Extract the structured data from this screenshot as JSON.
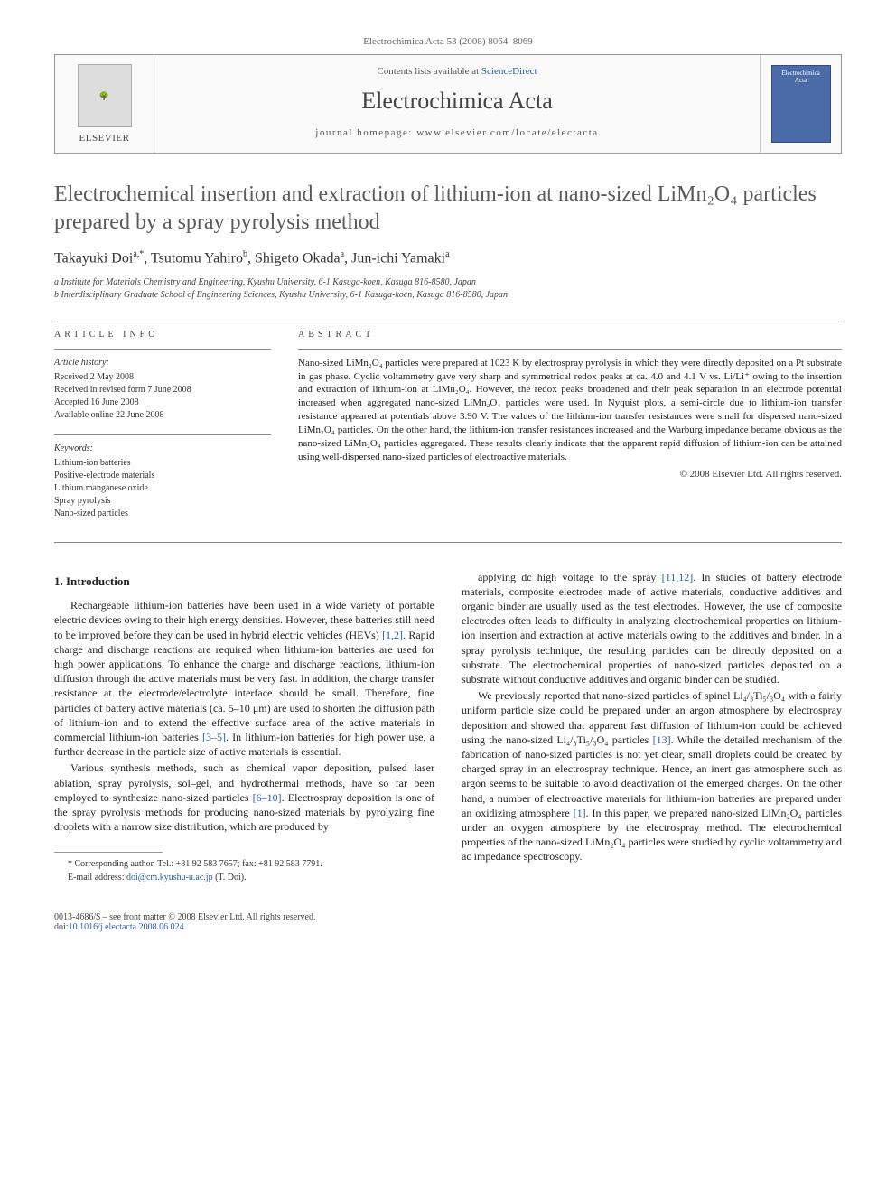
{
  "citation": "Electrochimica Acta 53 (2008) 8064–8069",
  "header": {
    "publisher_name": "ELSEVIER",
    "contents_prefix": "Contents lists available at ",
    "contents_link": "ScienceDirect",
    "journal_name": "Electrochimica Acta",
    "homepage_prefix": "journal homepage: ",
    "homepage_url": "www.elsevier.com/locate/electacta",
    "cover_label": "Electrochimica Acta"
  },
  "article": {
    "title": "Electrochemical insertion and extraction of lithium-ion at nano-sized LiMn₂O₄ particles prepared by a spray pyrolysis method",
    "authors_html": "Takayuki Doi<sup>a,*</sup>, Tsutomu Yahiro<sup>b</sup>, Shigeto Okada<sup>a</sup>, Jun-ichi Yamaki<sup>a</sup>",
    "affiliations": [
      "a Institute for Materials Chemistry and Engineering, Kyushu University, 6-1 Kasuga-koen, Kasuga 816-8580, Japan",
      "b Interdisciplinary Graduate School of Engineering Sciences, Kyushu University, 6-1 Kasuga-koen, Kasuga 816-8580, Japan"
    ]
  },
  "info": {
    "heading": "ARTICLE INFO",
    "history_heading": "Article history:",
    "history": [
      "Received 2 May 2008",
      "Received in revised form 7 June 2008",
      "Accepted 16 June 2008",
      "Available online 22 June 2008"
    ],
    "keywords_heading": "Keywords:",
    "keywords": [
      "Lithium-ion batteries",
      "Positive-electrode materials",
      "Lithium manganese oxide",
      "Spray pyrolysis",
      "Nano-sized particles"
    ]
  },
  "abstract": {
    "heading": "ABSTRACT",
    "text": "Nano-sized LiMn₂O₄ particles were prepared at 1023 K by electrospray pyrolysis in which they were directly deposited on a Pt substrate in gas phase. Cyclic voltammetry gave very sharp and symmetrical redox peaks at ca. 4.0 and 4.1 V vs. Li/Li⁺ owing to the insertion and extraction of lithium-ion at LiMn₂O₄. However, the redox peaks broadened and their peak separation in an electrode potential increased when aggregated nano-sized LiMn₂O₄ particles were used. In Nyquist plots, a semi-circle due to lithium-ion transfer resistance appeared at potentials above 3.90 V. The values of the lithium-ion transfer resistances were small for dispersed nano-sized LiMn₂O₄ particles. On the other hand, the lithium-ion transfer resistances increased and the Warburg impedance became obvious as the nano-sized LiMn₂O₄ particles aggregated. These results clearly indicate that the apparent rapid diffusion of lithium-ion can be attained using well-dispersed nano-sized particles of electroactive materials.",
    "copyright": "© 2008 Elsevier Ltd. All rights reserved."
  },
  "body": {
    "section_heading": "1. Introduction",
    "p1": "Rechargeable lithium-ion batteries have been used in a wide variety of portable electric devices owing to their high energy densities. However, these batteries still need to be improved before they can be used in hybrid electric vehicles (HEVs) [1,2]. Rapid charge and discharge reactions are required when lithium-ion batteries are used for high power applications. To enhance the charge and discharge reactions, lithium-ion diffusion through the active materials must be very fast. In addition, the charge transfer resistance at the electrode/electrolyte interface should be small. Therefore, fine particles of battery active materials (ca. 5–10 μm) are used to shorten the diffusion path of lithium-ion and to extend the effective surface area of the active materials in commercial lithium-ion batteries [3–5]. In lithium-ion batteries for high power use, a further decrease in the particle size of active materials is essential.",
    "p2": "Various synthesis methods, such as chemical vapor deposition, pulsed laser ablation, spray pyrolysis, sol–gel, and hydrothermal methods, have so far been employed to synthesize nano-sized particles [6–10]. Electrospray deposition is one of the spray pyrolysis methods for producing nano-sized materials by pyrolyzing fine droplets with a narrow size distribution, which are produced by",
    "p3": "applying dc high voltage to the spray [11,12]. In studies of battery electrode materials, composite electrodes made of active materials, conductive additives and organic binder are usually used as the test electrodes. However, the use of composite electrodes often leads to difficulty in analyzing electrochemical properties on lithium-ion insertion and extraction at active materials owing to the additives and binder. In a spray pyrolysis technique, the resulting particles can be directly deposited on a substrate. The electrochemical properties of nano-sized particles deposited on a substrate without conductive additives and organic binder can be studied.",
    "p4": "We previously reported that nano-sized particles of spinel Li₄/₃Ti₅/₃O₄ with a fairly uniform particle size could be prepared under an argon atmosphere by electrospray deposition and showed that apparent fast diffusion of lithium-ion could be achieved using the nano-sized Li₄/₃Ti₅/₃O₄ particles [13]. While the detailed mechanism of the fabrication of nano-sized particles is not yet clear, small droplets could be created by charged spray in an electrospray technique. Hence, an inert gas atmosphere such as argon seems to be suitable to avoid deactivation of the emerged charges. On the other hand, a number of electroactive materials for lithium-ion batteries are prepared under an oxidizing atmosphere [1]. In this paper, we prepared nano-sized LiMn₂O₄ particles under an oxygen atmosphere by the electrospray method. The electrochemical properties of the nano-sized LiMn₂O₄ particles were studied by cyclic voltammetry and ac impedance spectroscopy."
  },
  "footnote": {
    "corr": "* Corresponding author. Tel.: +81 92 583 7657; fax: +81 92 583 7791.",
    "email_label": "E-mail address: ",
    "email": "doi@cm.kyushu-u.ac.jp",
    "email_suffix": " (T. Doi)."
  },
  "footer": {
    "left_line1": "0013-4686/$ – see front matter © 2008 Elsevier Ltd. All rights reserved.",
    "doi_label": "doi:",
    "doi": "10.1016/j.electacta.2008.06.024"
  }
}
